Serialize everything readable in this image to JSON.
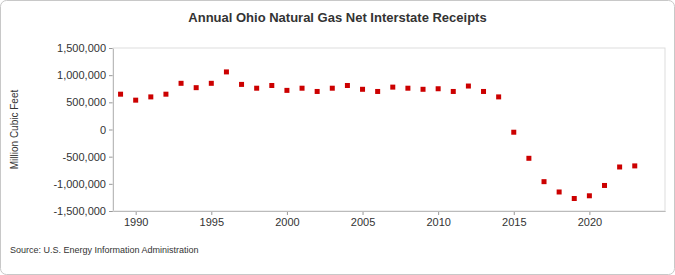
{
  "chart_data": {
    "type": "scatter",
    "title": "Annual Ohio Natural Gas Net Interstate Receipts",
    "y_label": "Million Cubic Feet",
    "source": "Source: U.S. Energy Information Administration",
    "x": [
      1989,
      1990,
      1991,
      1992,
      1993,
      1994,
      1995,
      1996,
      1997,
      1998,
      1999,
      2000,
      2001,
      2002,
      2003,
      2004,
      2005,
      2006,
      2007,
      2008,
      2009,
      2010,
      2011,
      2012,
      2013,
      2014,
      2015,
      2016,
      2017,
      2018,
      2019,
      2020,
      2021,
      2022,
      2023
    ],
    "values": [
      650000,
      540000,
      600000,
      650000,
      850000,
      770000,
      850000,
      1060000,
      830000,
      760000,
      810000,
      720000,
      760000,
      700000,
      760000,
      810000,
      740000,
      700000,
      780000,
      760000,
      740000,
      750000,
      700000,
      800000,
      700000,
      600000,
      -50000,
      -530000,
      -960000,
      -1150000,
      -1270000,
      -1220000,
      -1030000,
      -690000,
      -670000
    ],
    "color": "#cc0000",
    "marker": "square",
    "xlim": [
      1988.5,
      2025
    ],
    "xticks": [
      1990,
      1995,
      2000,
      2005,
      2010,
      2015,
      2020
    ],
    "ylim": [
      -1500000,
      1500000
    ],
    "yticks": [
      {
        "value": -1500000,
        "label": "-1,500,000"
      },
      {
        "value": -1000000,
        "label": "-1,000,000"
      },
      {
        "value": -500000,
        "label": "-500,000"
      },
      0,
      {
        "value": 500000,
        "label": "500,000"
      },
      {
        "value": 1000000,
        "label": "1,000,000"
      },
      {
        "value": 1500000,
        "label": "1,500,000"
      }
    ],
    "grid": false
  }
}
